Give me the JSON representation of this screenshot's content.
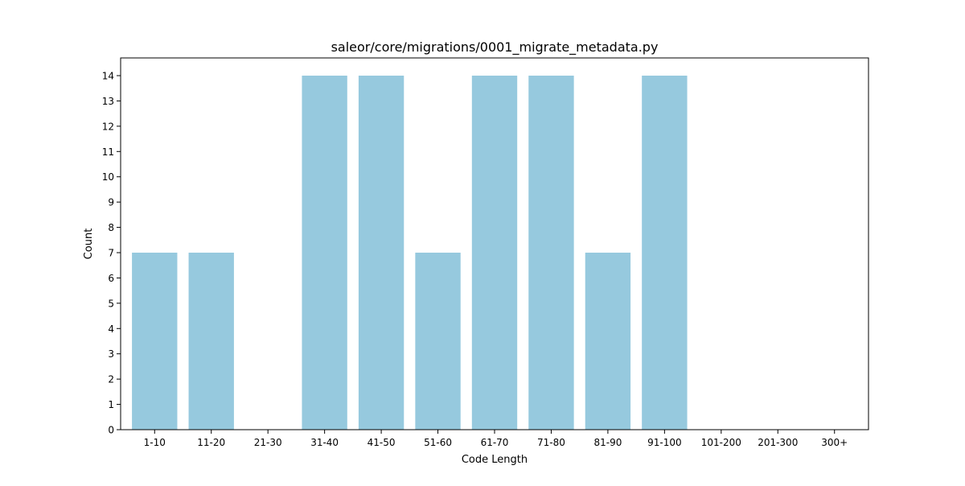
{
  "chart_data": {
    "type": "bar",
    "title": "saleor/core/migrations/0001_migrate_metadata.py",
    "xlabel": "Code Length",
    "ylabel": "Count",
    "categories": [
      "1-10",
      "11-20",
      "21-30",
      "31-40",
      "41-50",
      "51-60",
      "61-70",
      "71-80",
      "81-90",
      "91-100",
      "101-200",
      "201-300",
      "300+"
    ],
    "values": [
      7,
      7,
      0,
      14,
      14,
      7,
      14,
      14,
      7,
      14,
      0,
      0,
      0
    ],
    "ylim": [
      0,
      14.7
    ],
    "yticks": [
      0,
      1,
      2,
      3,
      4,
      5,
      6,
      7,
      8,
      9,
      10,
      11,
      12,
      13,
      14
    ],
    "bar_color": "#96c9de",
    "grid": false,
    "legend": "none"
  }
}
